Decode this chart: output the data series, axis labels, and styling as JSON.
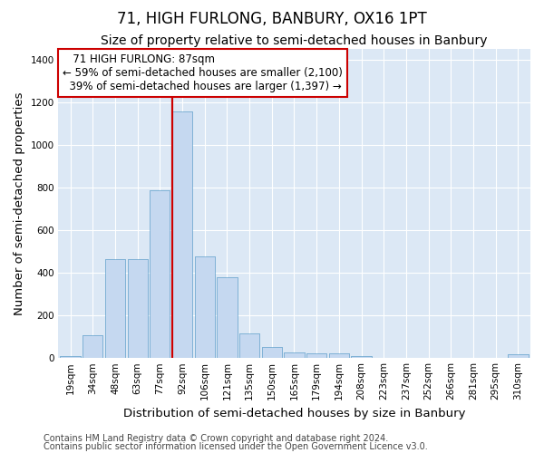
{
  "title": "71, HIGH FURLONG, BANBURY, OX16 1PT",
  "subtitle": "Size of property relative to semi-detached houses in Banbury",
  "xlabel": "Distribution of semi-detached houses by size in Banbury",
  "ylabel": "Number of semi-detached properties",
  "footnote1": "Contains HM Land Registry data © Crown copyright and database right 2024.",
  "footnote2": "Contains public sector information licensed under the Open Government Licence v3.0.",
  "bar_labels": [
    "19sqm",
    "34sqm",
    "48sqm",
    "63sqm",
    "77sqm",
    "92sqm",
    "106sqm",
    "121sqm",
    "135sqm",
    "150sqm",
    "165sqm",
    "179sqm",
    "194sqm",
    "208sqm",
    "223sqm",
    "237sqm",
    "252sqm",
    "266sqm",
    "281sqm",
    "295sqm",
    "310sqm"
  ],
  "bar_values": [
    10,
    105,
    465,
    465,
    785,
    1155,
    475,
    380,
    115,
    50,
    25,
    20,
    20,
    10,
    0,
    0,
    0,
    0,
    0,
    0,
    15
  ],
  "bar_color": "#c5d8f0",
  "bar_edge_color": "#7aafd4",
  "red_line_x": 5,
  "highlight_color": "#cc0000",
  "property_label": "71 HIGH FURLONG: 87sqm",
  "pct_smaller": 59,
  "count_smaller": 2100,
  "pct_larger": 39,
  "count_larger": 1397,
  "annotation_box_color": "#ffffff",
  "annotation_box_edge": "#cc0000",
  "ylim": [
    0,
    1450
  ],
  "yticks": [
    0,
    200,
    400,
    600,
    800,
    1000,
    1200,
    1400
  ],
  "bg_color": "#dce8f5",
  "plot_bg_color": "#dce8f5",
  "grid_color": "#ffffff",
  "title_fontsize": 12,
  "subtitle_fontsize": 10,
  "axis_label_fontsize": 9.5,
  "tick_fontsize": 7.5,
  "footnote_fontsize": 7
}
